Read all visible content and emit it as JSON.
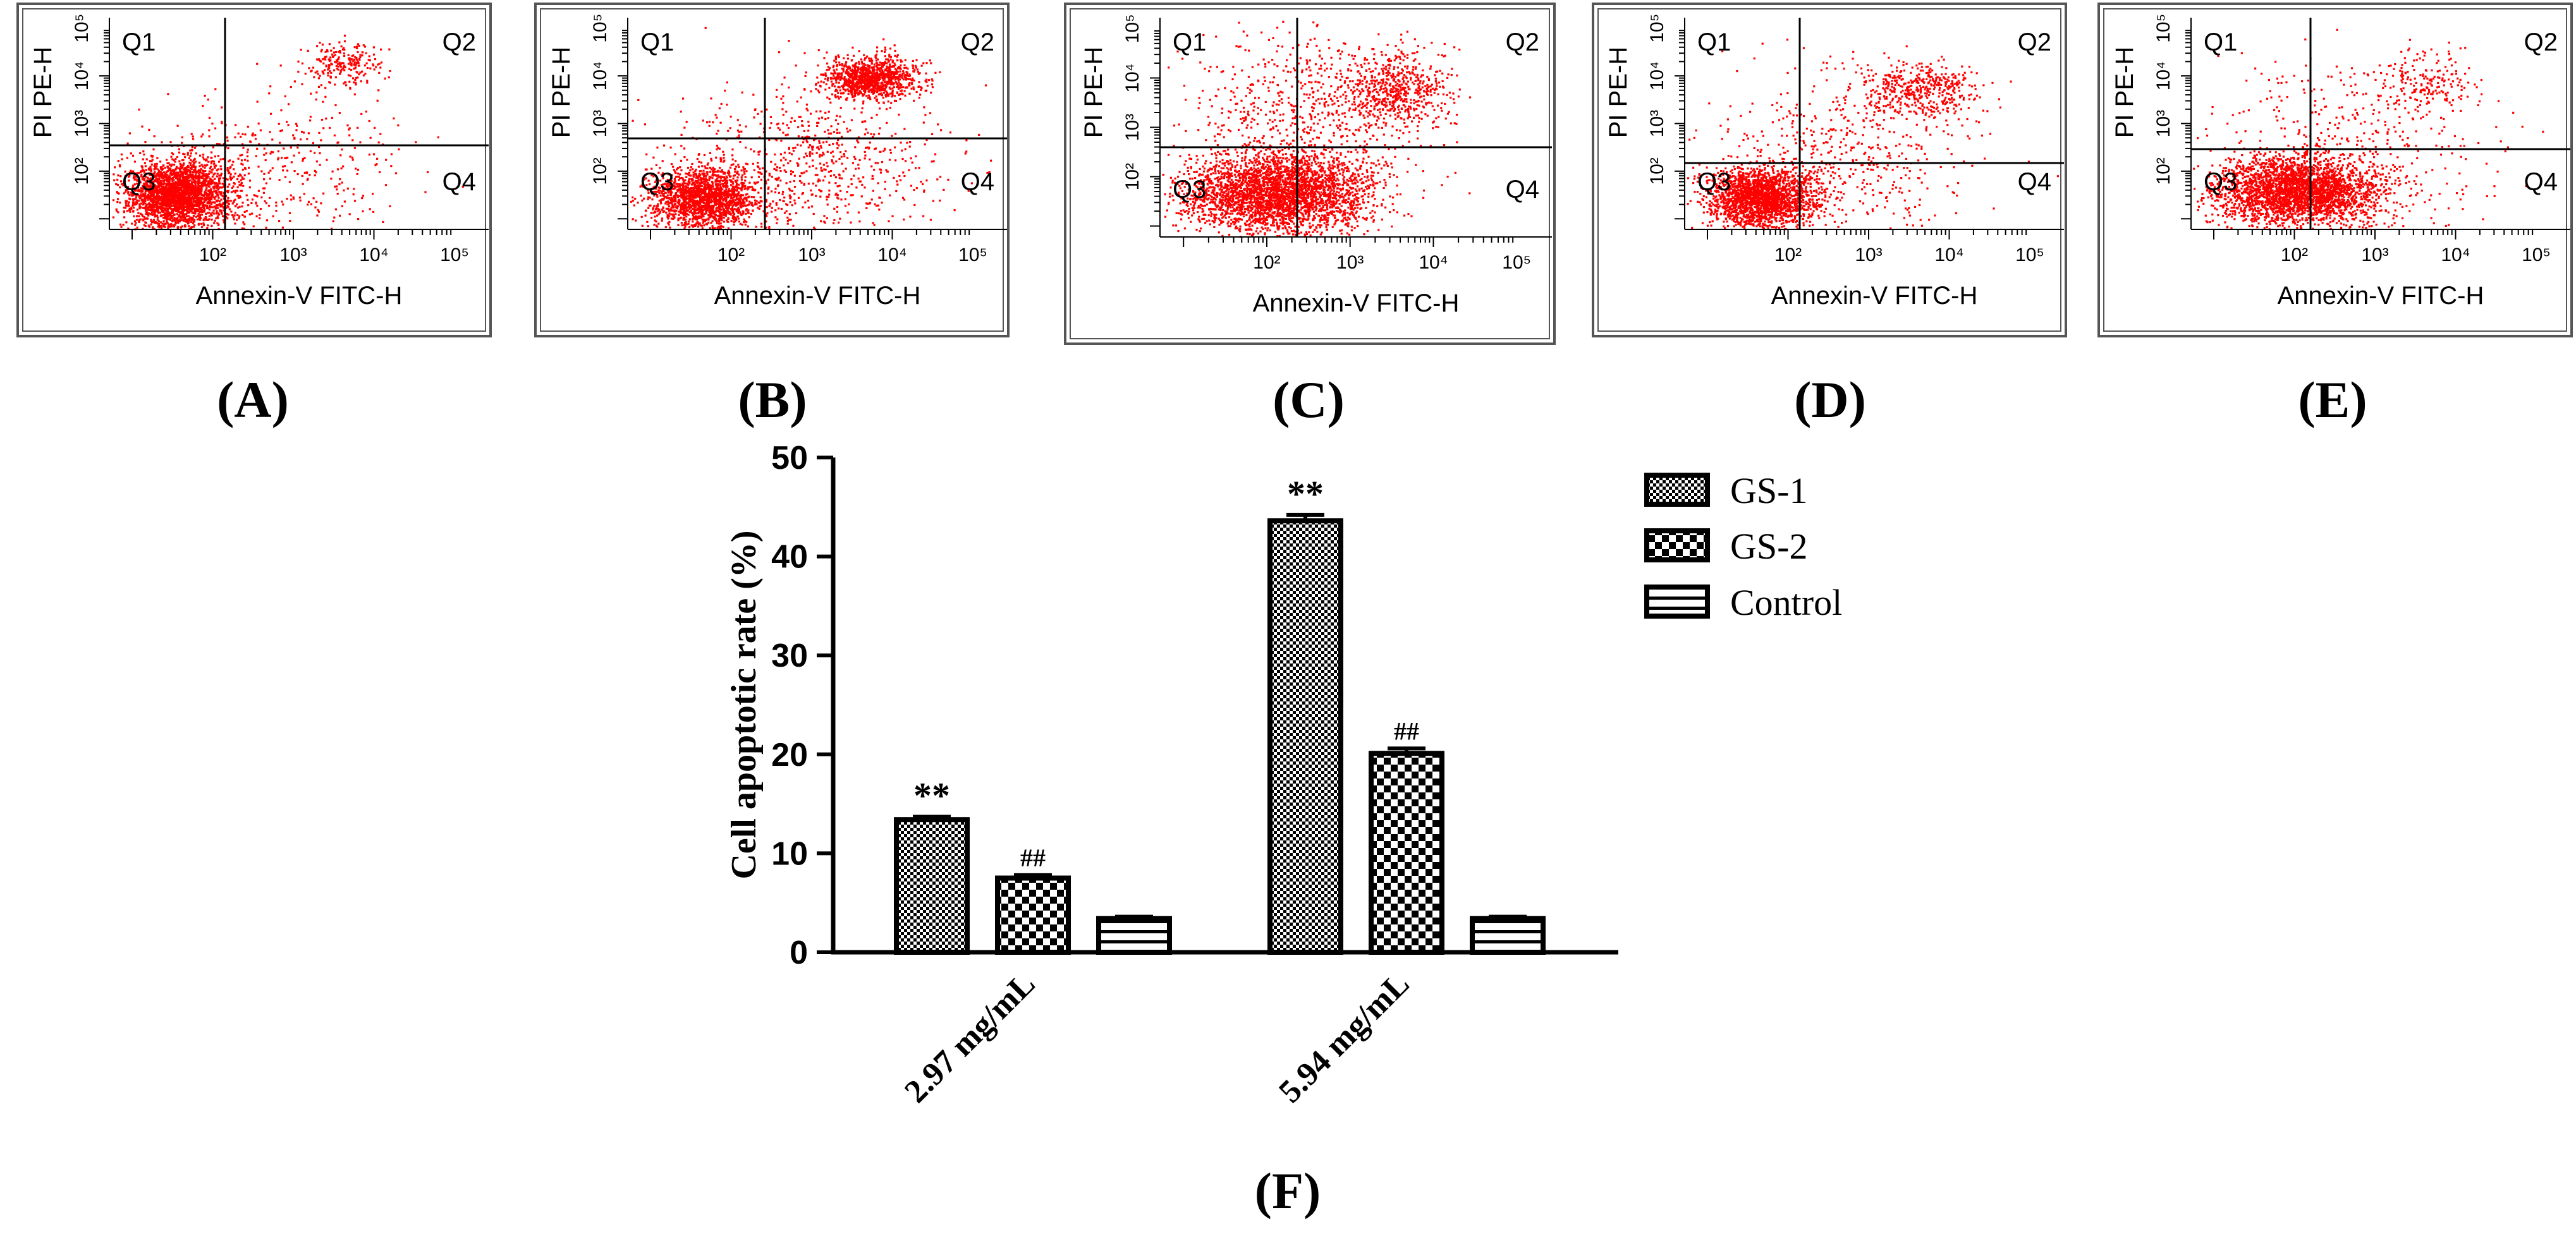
{
  "colors": {
    "dots": "#ff0000",
    "ink": "#000000",
    "frame": "#555555"
  },
  "flow_panels": [
    {
      "letter": "(A)",
      "quadrants": [
        "Q1",
        "Q2",
        "Q3",
        "Q4"
      ],
      "xlabel": "Annexin-V FITC-H",
      "ylabel": "PI PE-H",
      "x_ticks": [
        "10²",
        "10³",
        "10⁴",
        "10⁵"
      ],
      "y_ticks": [
        "10²",
        "10³",
        "10⁴",
        "10⁵"
      ]
    },
    {
      "letter": "(B)",
      "quadrants": [
        "Q1",
        "Q2",
        "Q3",
        "Q4"
      ],
      "xlabel": "Annexin-V FITC-H",
      "ylabel": "PI PE-H",
      "x_ticks": [
        "10²",
        "10³",
        "10⁴",
        "10⁵"
      ],
      "y_ticks": [
        "10²",
        "10³",
        "10⁴",
        "10⁵"
      ]
    },
    {
      "letter": "(C)",
      "quadrants": [
        "Q1",
        "Q2",
        "Q3",
        "Q4"
      ],
      "xlabel": "Annexin-V FITC-H",
      "ylabel": "PI PE-H",
      "x_ticks": [
        "10²",
        "10³",
        "10⁴",
        "10⁵"
      ],
      "y_ticks": [
        "10²",
        "10³",
        "10⁴",
        "10⁵"
      ]
    },
    {
      "letter": "(D)",
      "quadrants": [
        "Q1",
        "Q2",
        "Q3",
        "Q4"
      ],
      "xlabel": "Annexin-V FITC-H",
      "ylabel": "PI PE-H",
      "x_ticks": [
        "10²",
        "10³",
        "10⁴",
        "10⁵"
      ],
      "y_ticks": [
        "10²",
        "10³",
        "10⁴",
        "10⁵"
      ]
    },
    {
      "letter": "(E)",
      "quadrants": [
        "Q1",
        "Q2",
        "Q3",
        "Q4"
      ],
      "xlabel": "Annexin-V FITC-H",
      "ylabel": "PI PE-H",
      "x_ticks": [
        "10²",
        "10³",
        "10⁴",
        "10⁵"
      ],
      "y_ticks": [
        "10²",
        "10³",
        "10⁴",
        "10⁵"
      ]
    }
  ],
  "chart_data": {
    "type": "bar",
    "panel_label": "(F)",
    "ylabel": "Cell apoptotic rate (%)",
    "ylim": [
      0,
      50
    ],
    "yticks": [
      0,
      10,
      20,
      30,
      40,
      50
    ],
    "categories": [
      "2.97 mg/mL",
      "5.94 mg/mL"
    ],
    "series": [
      {
        "name": "GS-1",
        "values": [
          13.4,
          43.6
        ],
        "errors": [
          0.3,
          0.6
        ],
        "annotations": [
          "**",
          "**"
        ],
        "pattern": "checker-fine"
      },
      {
        "name": "GS-2",
        "values": [
          7.5,
          20.1
        ],
        "errors": [
          0.3,
          0.5
        ],
        "annotations": [
          "##",
          "##"
        ],
        "pattern": "checker-coarse"
      },
      {
        "name": "Control",
        "values": [
          3.4,
          3.4
        ],
        "errors": [
          0.2,
          0.2
        ],
        "annotations": [
          "",
          ""
        ],
        "pattern": "stripes"
      }
    ],
    "legend_position": "top-right",
    "grid": false
  }
}
